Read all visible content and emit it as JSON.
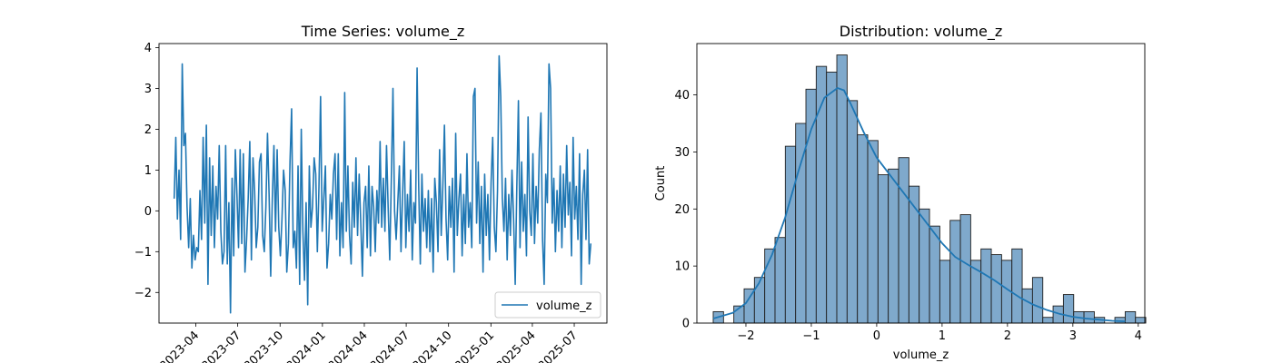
{
  "chart_data": [
    {
      "type": "line",
      "title": "Time Series: volume_z",
      "xlabel": "",
      "ylabel": "",
      "xlim": [
        "2023-01-11",
        "2025-09-10"
      ],
      "ylim": [
        -2.75,
        4.1
      ],
      "xticks": [
        "2023-04",
        "2023-07",
        "2023-10",
        "2024-01",
        "2024-04",
        "2024-07",
        "2024-10",
        "2025-01",
        "2025-04",
        "2025-07"
      ],
      "xtick_dates": [
        "2023-04-01",
        "2023-07-01",
        "2023-10-01",
        "2024-01-01",
        "2024-04-01",
        "2024-07-01",
        "2024-10-01",
        "2025-01-01",
        "2025-04-01",
        "2025-07-01"
      ],
      "yticks": [
        -2,
        -1,
        0,
        1,
        2,
        3,
        4
      ],
      "legend": {
        "entries": [
          "volume_z"
        ],
        "placement": "lower-right"
      },
      "series": [
        {
          "name": "volume_z",
          "color": "#1f77b4",
          "x_start": "2023-02-13",
          "x_end": "2025-08-06",
          "values": [
            0.3,
            1.8,
            -0.2,
            1.0,
            -0.7,
            3.6,
            1.6,
            1.9,
            0.1,
            -0.9,
            0.3,
            -1.4,
            -0.6,
            -1.2,
            -0.9,
            -1.0,
            0.5,
            -0.7,
            1.8,
            -0.3,
            2.1,
            -1.8,
            1.3,
            -0.6,
            1.1,
            -0.9,
            0.6,
            -0.2,
            1.6,
            -0.5,
            -1.3,
            -1.0,
            1.6,
            -1.3,
            0.2,
            -2.5,
            0.8,
            -1.1,
            1.5,
            0.4,
            -0.9,
            1.5,
            -0.8,
            1.4,
            -1.5,
            -0.7,
            0.3,
            1.7,
            -1.2,
            1.3,
            0.5,
            -0.9,
            -0.4,
            1.2,
            1.4,
            -0.6,
            -1.0,
            0.1,
            1.9,
            0.4,
            -1.6,
            0.3,
            1.6,
            -0.5,
            1.5,
            -0.4,
            -1.1,
            -0.2,
            1.0,
            0.5,
            -1.5,
            -0.8,
            1.2,
            2.5,
            -0.9,
            -0.5,
            -1.4,
            1.1,
            -1.8,
            2.0,
            -0.5,
            -1.7,
            0.2,
            -2.3,
            1.1,
            -0.4,
            0.1,
            1.3,
            0.9,
            -1.0,
            0.6,
            2.8,
            -0.5,
            0.3,
            1.1,
            -1.4,
            -0.8,
            0.4,
            -0.2,
            0.9,
            1.4,
            -0.7,
            1.4,
            -1.1,
            0.2,
            -0.9,
            2.9,
            -0.5,
            1.1,
            -0.6,
            -1.3,
            0.7,
            -0.4,
            1.3,
            -0.6,
            0.9,
            -0.3,
            -1.6,
            0.2,
            0.6,
            -0.9,
            1.1,
            -1.1,
            0.6,
            0.1,
            -1.0,
            0.5,
            -0.3,
            1.7,
            -0.4,
            0.8,
            -0.5,
            1.6,
            0.1,
            -1.2,
            0.8,
            3.0,
            0.0,
            -0.7,
            0.2,
            1.1,
            -1.0,
            0.4,
            1.7,
            -0.9,
            0.4,
            -0.5,
            1.0,
            -1.2,
            0.2,
            -0.3,
            3.5,
            0.6,
            -1.3,
            0.9,
            -0.5,
            0.3,
            -0.9,
            0.5,
            -1.0,
            0.3,
            -1.5,
            0.8,
            0.2,
            -1.0,
            1.5,
            -0.6,
            0.6,
            2.1,
            -0.2,
            -1.2,
            0.6,
            -0.4,
            0.8,
            -1.5,
            1.9,
            -0.6,
            0.3,
            0.9,
            -1.1,
            0.4,
            -0.8,
            1.4,
            -0.4,
            0.2,
            -0.9,
            2.8,
            3.0,
            -0.3,
            1.2,
            -0.8,
            0.6,
            -1.5,
            0.9,
            -0.6,
            0.4,
            -1.2,
            0.7,
            1.8,
            -0.4,
            -1.0,
            0.5,
            3.8,
            2.8,
            0.3,
            -0.5,
            0.8,
            -1.2,
            0.4,
            -0.6,
            1.0,
            -0.2,
            -1.8,
            0.6,
            2.7,
            -0.9,
            1.2,
            -0.5,
            0.4,
            -1.1,
            2.3,
            0.0,
            -0.6,
            1.4,
            -0.8,
            0.6,
            -0.3,
            1.5,
            2.4,
            -0.7,
            -1.8,
            0.9,
            0.2,
            3.6,
            3.0,
            -0.3,
            0.8,
            -1.0,
            0.5,
            -0.5,
            1.1,
            -0.9,
            0.9,
            -0.4,
            1.6,
            -0.1,
            0.7,
            -1.1,
            1.8,
            -0.2,
            0.6,
            -0.7,
            1.4,
            -1.8,
            0.4,
            1.0,
            -0.7,
            1.5,
            -1.3,
            -0.8
          ]
        }
      ]
    },
    {
      "type": "bar",
      "title": "Distribution: volume_z",
      "xlabel": "volume_z",
      "ylabel": "Count",
      "xlim": [
        -2.75,
        4.1
      ],
      "ylim": [
        0,
        49
      ],
      "xticks": [
        -2,
        -1,
        0,
        1,
        2,
        3,
        4
      ],
      "yticks": [
        0,
        10,
        20,
        30,
        40
      ],
      "bins": {
        "start": -2.5,
        "width": 0.1575
      },
      "counts": [
        2,
        0,
        3,
        6,
        8,
        13,
        15,
        31,
        35,
        41,
        45,
        44,
        47,
        39,
        33,
        32,
        26,
        27,
        29,
        24,
        20,
        17,
        11,
        18,
        19,
        11,
        13,
        12,
        11,
        13,
        6,
        8,
        1,
        3,
        5,
        2,
        2,
        1,
        0,
        1,
        2,
        1
      ],
      "bar_color": "#7fa9cc",
      "edge_color": "#1f1f1f",
      "kde": {
        "color": "#1f77b4",
        "x": [
          -2.5,
          -2.2,
          -2.0,
          -1.8,
          -1.6,
          -1.4,
          -1.2,
          -1.0,
          -0.8,
          -0.6,
          -0.5,
          -0.4,
          -0.2,
          0.0,
          0.2,
          0.4,
          0.6,
          0.8,
          1.0,
          1.2,
          1.4,
          1.6,
          1.8,
          2.0,
          2.2,
          2.4,
          2.6,
          2.8,
          3.0,
          3.2,
          3.4,
          3.6,
          3.8
        ],
        "y": [
          0.8,
          1.8,
          3.5,
          7.0,
          12.0,
          18.5,
          26.5,
          34.0,
          39.5,
          41.2,
          40.8,
          38.5,
          33.5,
          29.0,
          26.0,
          23.0,
          20.0,
          17.0,
          14.0,
          11.6,
          10.2,
          8.9,
          7.5,
          5.9,
          4.4,
          3.2,
          2.3,
          1.6,
          1.1,
          0.8,
          0.6,
          0.4,
          0.3
        ]
      }
    }
  ]
}
